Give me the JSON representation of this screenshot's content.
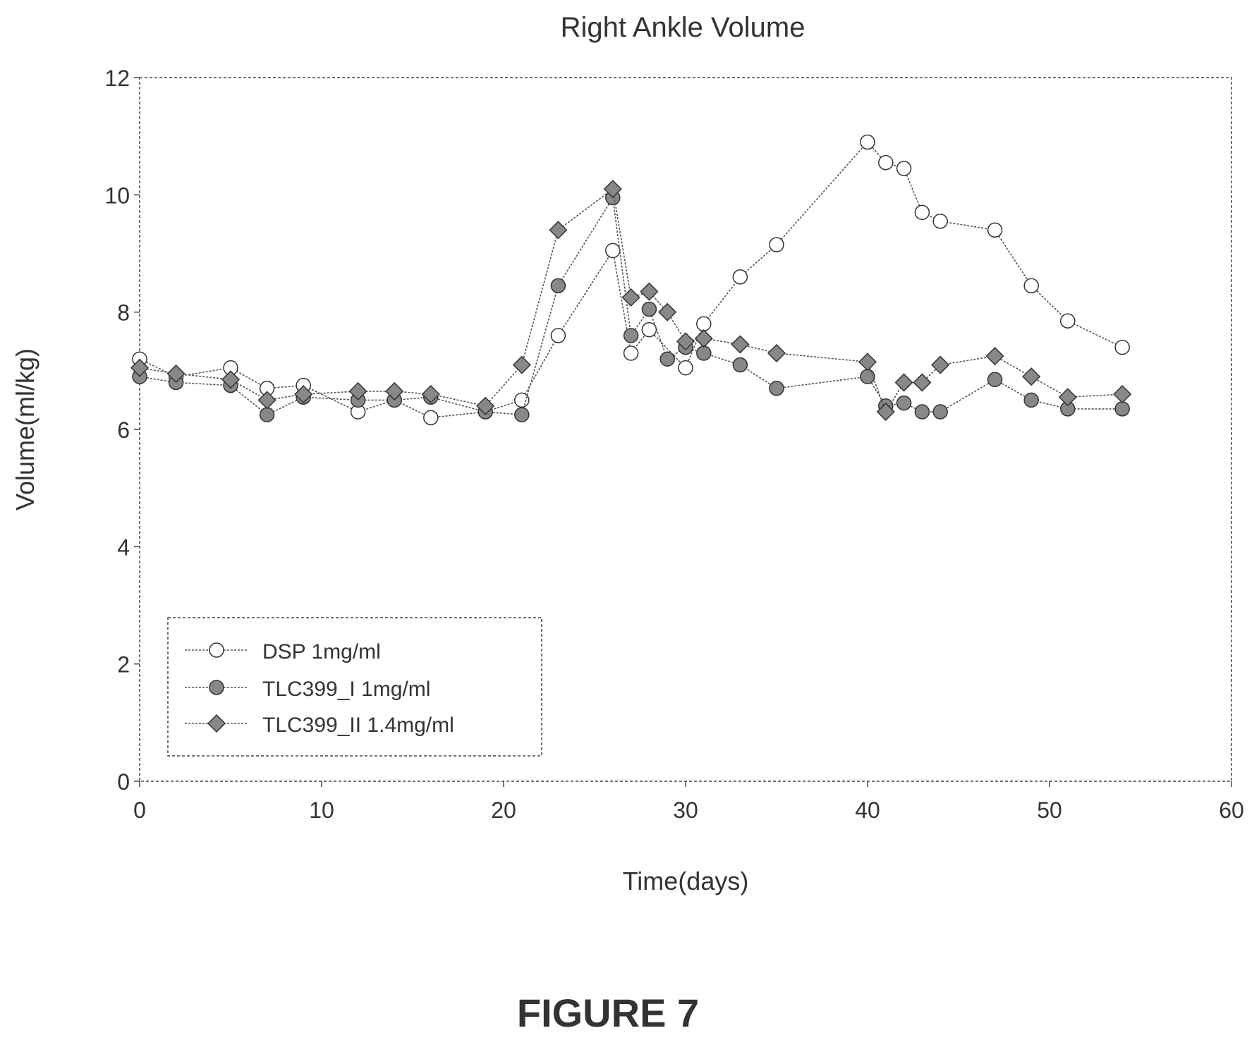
{
  "figure_label": "FIGURE 7",
  "colors": {
    "axis": "#444444",
    "line": "#555555",
    "open_marker_fill": "#ffffff",
    "filled_marker_fill": "#888888",
    "text": "#333333"
  },
  "chart_data": {
    "type": "line",
    "title": "Right Ankle Volume",
    "xlabel": "Time(days)",
    "ylabel": "Volume(ml/kg)",
    "xlim": [
      0,
      60
    ],
    "ylim": [
      0,
      12
    ],
    "xticks": [
      0,
      10,
      20,
      30,
      40,
      50,
      60
    ],
    "yticks": [
      0,
      2,
      4,
      6,
      8,
      10,
      12
    ],
    "grid": false,
    "legend_position": "bottom-left",
    "series": [
      {
        "name": "DSP 1mg/ml",
        "marker": "open-circle",
        "x": [
          0,
          2,
          5,
          7,
          9,
          12,
          14,
          16,
          19,
          21,
          23,
          26,
          27,
          28,
          30,
          31,
          33,
          35,
          40,
          41,
          42,
          43,
          44,
          47,
          49,
          51,
          54
        ],
        "y": [
          7.2,
          6.9,
          7.05,
          6.7,
          6.75,
          6.3,
          6.5,
          6.2,
          6.3,
          6.5,
          7.6,
          9.05,
          7.3,
          7.7,
          7.05,
          7.8,
          8.6,
          9.15,
          10.9,
          10.55,
          10.45,
          9.7,
          9.55,
          9.4,
          8.45,
          7.85,
          7.4
        ]
      },
      {
        "name": "TLC399_I  1mg/ml",
        "marker": "filled-circle",
        "x": [
          0,
          2,
          5,
          7,
          9,
          12,
          14,
          16,
          19,
          21,
          23,
          26,
          27,
          28,
          29,
          30,
          31,
          33,
          35,
          40,
          41,
          42,
          43,
          44,
          47,
          49,
          51,
          54
        ],
        "y": [
          6.9,
          6.8,
          6.75,
          6.25,
          6.55,
          6.5,
          6.5,
          6.55,
          6.3,
          6.25,
          8.45,
          9.95,
          7.6,
          8.05,
          7.2,
          7.4,
          7.3,
          7.1,
          6.7,
          6.9,
          6.4,
          6.45,
          6.3,
          6.3,
          6.85,
          6.5,
          6.35,
          6.35
        ]
      },
      {
        "name": "TLC399_II  1.4mg/ml",
        "marker": "filled-diamond",
        "x": [
          0,
          2,
          5,
          7,
          9,
          12,
          14,
          16,
          19,
          21,
          23,
          26,
          27,
          28,
          29,
          30,
          31,
          33,
          35,
          40,
          41,
          42,
          43,
          44,
          47,
          49,
          51,
          54
        ],
        "y": [
          7.05,
          6.95,
          6.85,
          6.5,
          6.6,
          6.65,
          6.65,
          6.6,
          6.4,
          7.1,
          9.4,
          10.1,
          8.25,
          8.35,
          8.0,
          7.5,
          7.55,
          7.45,
          7.3,
          7.15,
          6.3,
          6.8,
          6.8,
          7.1,
          7.25,
          6.9,
          6.55,
          6.6
        ]
      }
    ]
  }
}
